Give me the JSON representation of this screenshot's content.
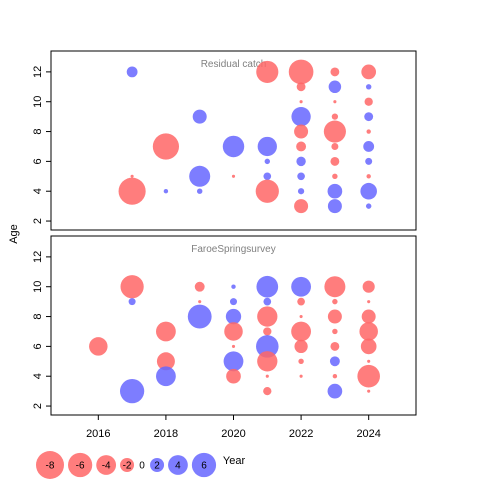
{
  "chart_data": {
    "type": "scatter",
    "xlabel": "Year",
    "ylabel": "Age",
    "xlim": [
      2014.6,
      2025.4
    ],
    "x_ticks": [
      2016,
      2018,
      2020,
      2022,
      2024
    ],
    "grid": false,
    "colors": {
      "negative": "#ff6666",
      "positive": "#6666ff",
      "zero_label": "#000000"
    },
    "panels": [
      {
        "title": "Residual catch",
        "ylim": [
          1.4,
          13.4
        ],
        "y_ticks": [
          2,
          4,
          6,
          8,
          10,
          12
        ],
        "points": [
          {
            "x": 2017,
            "y": 12,
            "v": 1.2
          },
          {
            "x": 2017,
            "y": 5,
            "v": -0.1
          },
          {
            "x": 2017,
            "y": 4,
            "v": -7.5
          },
          {
            "x": 2018,
            "y": 7,
            "v": -7.0
          },
          {
            "x": 2018,
            "y": 4,
            "v": 0.2
          },
          {
            "x": 2019,
            "y": 9,
            "v": 2.0
          },
          {
            "x": 2019,
            "y": 5,
            "v": 4.5
          },
          {
            "x": 2019,
            "y": 4,
            "v": 0.3
          },
          {
            "x": 2020,
            "y": 7,
            "v": 4.7
          },
          {
            "x": 2020,
            "y": 5,
            "v": -0.1
          },
          {
            "x": 2021,
            "y": 12,
            "v": -5.0
          },
          {
            "x": 2021,
            "y": 7,
            "v": 3.8
          },
          {
            "x": 2021,
            "y": 6,
            "v": 0.3
          },
          {
            "x": 2021,
            "y": 5,
            "v": 0.6
          },
          {
            "x": 2021,
            "y": 4,
            "v": -5.5
          },
          {
            "x": 2022,
            "y": 12,
            "v": -6.2
          },
          {
            "x": 2022,
            "y": 11,
            "v": -0.8
          },
          {
            "x": 2022,
            "y": 10,
            "v": -0.1
          },
          {
            "x": 2022,
            "y": 9,
            "v": 3.8
          },
          {
            "x": 2022,
            "y": 8,
            "v": -2.0
          },
          {
            "x": 2022,
            "y": 7,
            "v": -1.0
          },
          {
            "x": 2022,
            "y": 6,
            "v": 0.9
          },
          {
            "x": 2022,
            "y": 5,
            "v": 0.6
          },
          {
            "x": 2022,
            "y": 4,
            "v": 0.4
          },
          {
            "x": 2022,
            "y": 3,
            "v": -2.0
          },
          {
            "x": 2023,
            "y": 12,
            "v": -0.8
          },
          {
            "x": 2023,
            "y": 11,
            "v": 1.6
          },
          {
            "x": 2023,
            "y": 10,
            "v": -0.1
          },
          {
            "x": 2023,
            "y": 9,
            "v": -0.4
          },
          {
            "x": 2023,
            "y": 8,
            "v": -5.0
          },
          {
            "x": 2023,
            "y": 7,
            "v": -0.5
          },
          {
            "x": 2023,
            "y": 6,
            "v": -0.8
          },
          {
            "x": 2023,
            "y": 5,
            "v": -0.3
          },
          {
            "x": 2023,
            "y": 4,
            "v": 2.2
          },
          {
            "x": 2023,
            "y": 3,
            "v": 2.0
          },
          {
            "x": 2024,
            "y": 12,
            "v": -2.2
          },
          {
            "x": 2024,
            "y": 11,
            "v": 0.3
          },
          {
            "x": 2024,
            "y": 10,
            "v": -0.7
          },
          {
            "x": 2024,
            "y": 9,
            "v": 0.8
          },
          {
            "x": 2024,
            "y": 8,
            "v": -0.2
          },
          {
            "x": 2024,
            "y": 7,
            "v": 1.2
          },
          {
            "x": 2024,
            "y": 6,
            "v": 0.5
          },
          {
            "x": 2024,
            "y": 5,
            "v": -0.2
          },
          {
            "x": 2024,
            "y": 4,
            "v": 2.8
          },
          {
            "x": 2024,
            "y": 3,
            "v": 0.3
          }
        ]
      },
      {
        "title": "FaroeSpringsurvey",
        "ylim": [
          1.4,
          13.4
        ],
        "y_ticks": [
          2,
          4,
          6,
          8,
          10,
          12
        ],
        "points": [
          {
            "x": 2016,
            "y": 6,
            "v": -3.5
          },
          {
            "x": 2017,
            "y": 10,
            "v": -5.5
          },
          {
            "x": 2017,
            "y": 9,
            "v": 0.5
          },
          {
            "x": 2017,
            "y": 3,
            "v": 6.0
          },
          {
            "x": 2018,
            "y": 7,
            "v": -4.0
          },
          {
            "x": 2018,
            "y": 5,
            "v": -3.3
          },
          {
            "x": 2018,
            "y": 4,
            "v": 4.0
          },
          {
            "x": 2019,
            "y": 10,
            "v": -1.0
          },
          {
            "x": 2019,
            "y": 9,
            "v": -0.1
          },
          {
            "x": 2019,
            "y": 8,
            "v": 5.8
          },
          {
            "x": 2020,
            "y": 10,
            "v": 0.2
          },
          {
            "x": 2020,
            "y": 9,
            "v": 0.5
          },
          {
            "x": 2020,
            "y": 8,
            "v": 2.4
          },
          {
            "x": 2020,
            "y": 7,
            "v": -3.5
          },
          {
            "x": 2020,
            "y": 6,
            "v": -0.1
          },
          {
            "x": 2020,
            "y": 5,
            "v": 4.0
          },
          {
            "x": 2020,
            "y": 4,
            "v": -2.2
          },
          {
            "x": 2021,
            "y": 10,
            "v": 4.8
          },
          {
            "x": 2021,
            "y": 9,
            "v": 0.6
          },
          {
            "x": 2021,
            "y": 8,
            "v": -4.2
          },
          {
            "x": 2021,
            "y": 7,
            "v": -0.7
          },
          {
            "x": 2021,
            "y": 6,
            "v": 5.2
          },
          {
            "x": 2021,
            "y": 5,
            "v": -4.2
          },
          {
            "x": 2021,
            "y": 4,
            "v": -0.1
          },
          {
            "x": 2021,
            "y": 3,
            "v": -0.7
          },
          {
            "x": 2022,
            "y": 10,
            "v": 4.0
          },
          {
            "x": 2022,
            "y": 9,
            "v": -0.6
          },
          {
            "x": 2022,
            "y": 8,
            "v": -0.1
          },
          {
            "x": 2022,
            "y": 7,
            "v": -4.0
          },
          {
            "x": 2022,
            "y": 6,
            "v": -1.8
          },
          {
            "x": 2022,
            "y": 5,
            "v": -0.3
          },
          {
            "x": 2022,
            "y": 4,
            "v": -0.1
          },
          {
            "x": 2023,
            "y": 10,
            "v": -4.5
          },
          {
            "x": 2023,
            "y": 9,
            "v": -0.3
          },
          {
            "x": 2023,
            "y": 8,
            "v": -2.0
          },
          {
            "x": 2023,
            "y": 7,
            "v": -0.3
          },
          {
            "x": 2023,
            "y": 6,
            "v": -0.8
          },
          {
            "x": 2023,
            "y": 5,
            "v": 1.0
          },
          {
            "x": 2023,
            "y": 4,
            "v": -0.2
          },
          {
            "x": 2023,
            "y": 3,
            "v": 2.2
          },
          {
            "x": 2024,
            "y": 10,
            "v": -1.5
          },
          {
            "x": 2024,
            "y": 9,
            "v": -0.1
          },
          {
            "x": 2024,
            "y": 8,
            "v": -2.0
          },
          {
            "x": 2024,
            "y": 7,
            "v": -3.5
          },
          {
            "x": 2024,
            "y": 6,
            "v": -2.5
          },
          {
            "x": 2024,
            "y": 5,
            "v": -0.1
          },
          {
            "x": 2024,
            "y": 4,
            "v": -5.2
          },
          {
            "x": 2024,
            "y": 3,
            "v": -0.1
          }
        ]
      }
    ],
    "legend": {
      "position": "bottom-left",
      "items": [
        {
          "label": "-8",
          "value": -8
        },
        {
          "label": "-6",
          "value": -6
        },
        {
          "label": "-4",
          "value": -4
        },
        {
          "label": "-2",
          "value": -2
        },
        {
          "label": "0",
          "value": 0
        },
        {
          "label": "2",
          "value": 2
        },
        {
          "label": "4",
          "value": 4
        },
        {
          "label": "6",
          "value": 6
        }
      ]
    }
  }
}
